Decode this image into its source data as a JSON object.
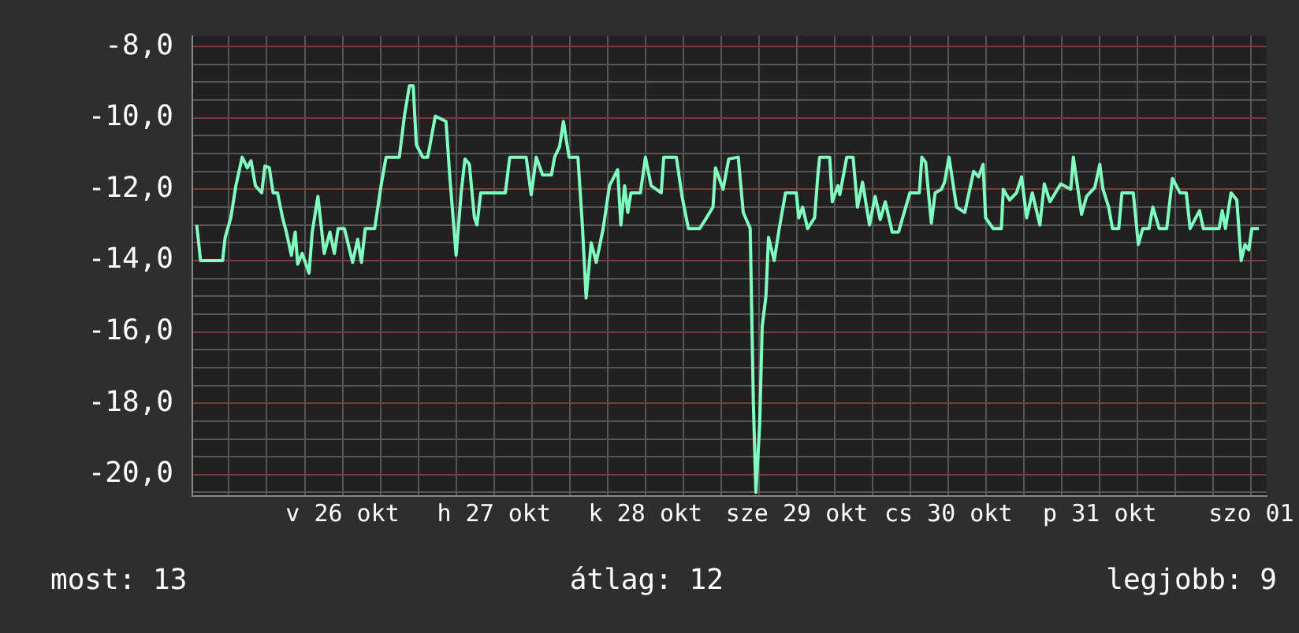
{
  "chart_data": {
    "type": "line",
    "x": [
      "--10-25T12:54",
      "--10-25T13:30",
      "--10-25T17:00",
      "--10-25T17:24",
      "--10-25T18:18",
      "--10-25T19:06",
      "--10-25T20:06",
      "--10-25T20:54",
      "--10-25T21:30",
      "--10-25T22:12",
      "--10-25T23:12",
      "--10-25T23:42",
      "--10-26T00:24",
      "--10-26T01:00",
      "--10-26T01:42",
      "--10-26T02:30",
      "--10-26T03:06",
      "--10-26T03:54",
      "--10-26T04:30",
      "--10-26T04:54",
      "--10-26T05:36",
      "--10-26T06:42",
      "--10-26T07:12",
      "--10-26T08:06",
      "--10-26T09:06",
      "--10-26T10:00",
      "--10-26T10:42",
      "--10-26T11:18",
      "--10-26T12:18",
      "--10-26T13:36",
      "--10-26T14:24",
      "--10-26T15:00",
      "--10-26T15:36",
      "--10-26T17:06",
      "--10-26T18:06",
      "--10-26T18:54",
      "--10-26T21:00",
      "--10-26T21:48",
      "--10-26T22:36",
      "--10-26T23:12",
      "--10-26T23:42",
      "--10-27T00:42",
      "--10-27T01:30",
      "--10-27T02:42",
      "--10-27T04:24",
      "--10-27T05:00",
      "--10-27T06:00",
      "--10-27T06:48",
      "--10-27T07:24",
      "--10-27T08:06",
      "--10-27T08:54",
      "--10-27T09:18",
      "--10-27T09:54",
      "--10-27T13:48",
      "--10-27T14:30",
      "--10-27T17:06",
      "--10-27T17:54",
      "--10-27T18:42",
      "--10-27T19:42",
      "--10-27T21:06",
      "--10-27T21:36",
      "--10-27T22:24",
      "--10-27T23:00",
      "--10-27T23:54",
      "--10-28T01:18",
      "--10-28T02:00",
      "--10-28T02:36",
      "--10-28T03:24",
      "--10-28T04:12",
      "--10-28T05:18",
      "--10-28T06:18",
      "--10-28T07:36",
      "--10-28T08:06",
      "--10-28T08:42",
      "--10-28T09:12",
      "--10-28T09:42",
      "--10-28T11:12",
      "--10-28T12:00",
      "--10-28T12:54",
      "--10-28T14:30",
      "--10-28T14:54",
      "--10-28T16:54",
      "--10-28T17:48",
      "--10-28T18:48",
      "--10-28T20:36",
      "--10-28T21:30",
      "--10-28T22:42",
      "--10-28T23:06",
      "--10-29T00:18",
      "--10-29T01:12",
      "--10-29T02:42",
      "--10-29T03:30",
      "--10-29T04:36",
      "--10-29T05:06",
      "--10-29T05:30",
      "--10-29T06:06",
      "--10-29T06:30",
      "--10-29T07:06",
      "--10-29T07:30",
      "--10-29T08:24",
      "--10-29T09:12",
      "--10-29T10:12",
      "--10-29T11:54",
      "--10-29T12:18",
      "--10-29T12:54",
      "--10-29T13:42",
      "--10-29T14:48",
      "--10-29T15:18",
      "--10-29T15:36",
      "--10-29T17:12",
      "--10-29T17:36",
      "--10-29T18:30",
      "--10-29T18:48",
      "--10-29T19:54",
      "--10-29T20:54",
      "--10-29T21:36",
      "--10-29T22:24",
      "--10-29T23:30",
      "--10-30T00:24",
      "--10-30T01:12",
      "--10-30T02:00",
      "--10-30T03:06",
      "--10-30T04:06",
      "--10-30T05:54",
      "--10-30T07:24",
      "--10-30T07:48",
      "--10-30T08:24",
      "--10-30T09:18",
      "--10-30T09:54",
      "--10-30T10:54",
      "--10-30T11:24",
      "--10-30T12:06",
      "--10-30T13:18",
      "--10-30T14:36",
      "--10-30T16:00",
      "--10-30T16:48",
      "--10-30T17:30",
      "--10-30T17:54",
      "--10-30T19:06",
      "--10-30T20:24",
      "--10-30T20:42",
      "--10-30T21:42",
      "--10-30T22:48",
      "--10-30T23:36",
      "--10-31T00:24",
      "--10-31T01:18",
      "--10-31T02:30",
      "--10-31T03:12",
      "--10-31T04:06",
      "--10-31T05:48",
      "--10-31T07:24",
      "--10-31T07:48",
      "--10-31T09:06",
      "--10-31T09:54",
      "--10-31T11:12",
      "--10-31T12:00",
      "--10-31T12:30",
      "--10-31T13:24",
      "--10-31T14:00",
      "--10-31T15:00",
      "--10-31T15:30",
      "--10-31T17:18",
      "--10-31T18:06",
      "--10-31T18:48",
      "--10-31T19:48",
      "--10-31T20:24",
      "--10-31T21:24",
      "--10-31T22:36",
      "--10-31T23:30",
      "--11-01T00:42",
      "--11-01T01:42",
      "--11-01T02:18",
      "--11-01T03:48",
      "--11-01T04:24",
      "--11-01T06:54",
      "--11-01T07:24",
      "--11-01T07:54",
      "--11-01T08:48",
      "--11-01T09:42",
      "--11-01T10:24",
      "--11-01T11:00",
      "--11-01T11:36",
      "--11-01T12:06",
      "--11-01T13:12"
    ],
    "series": [
      {
        "color": "#80ffc0",
        "values": [
          -13.0,
          -14.0,
          -14.0,
          -13.35,
          -12.8,
          -11.9,
          -11.1,
          -11.4,
          -11.2,
          -11.9,
          -12.1,
          -11.35,
          -11.4,
          -12.1,
          -12.1,
          -12.8,
          -13.2,
          -13.85,
          -13.2,
          -14.1,
          -13.8,
          -14.35,
          -13.2,
          -12.2,
          -13.8,
          -13.2,
          -13.8,
          -13.1,
          -13.1,
          -14.05,
          -13.4,
          -14.05,
          -13.1,
          -13.1,
          -11.9,
          -11.1,
          -11.1,
          -9.95,
          -9.1,
          -9.1,
          -10.75,
          -11.1,
          -11.1,
          -9.95,
          -10.1,
          -11.65,
          -13.85,
          -12.1,
          -11.15,
          -11.3,
          -12.8,
          -13.0,
          -12.1,
          -12.1,
          -11.1,
          -11.1,
          -12.15,
          -11.1,
          -11.6,
          -11.6,
          -11.1,
          -10.8,
          -10.1,
          -11.1,
          -11.1,
          -13.0,
          -15.05,
          -13.5,
          -14.05,
          -13.1,
          -11.9,
          -11.45,
          -13.0,
          -11.9,
          -12.65,
          -12.1,
          -12.1,
          -11.1,
          -11.9,
          -12.1,
          -11.1,
          -11.1,
          -12.2,
          -13.1,
          -13.1,
          -12.85,
          -12.5,
          -11.4,
          -12.0,
          -11.15,
          -11.1,
          -12.65,
          -13.1,
          -18.0,
          -20.5,
          -18.6,
          -15.85,
          -14.98,
          -13.35,
          -14.0,
          -13.1,
          -12.1,
          -12.1,
          -12.8,
          -12.5,
          -13.1,
          -12.8,
          -11.65,
          -11.1,
          -11.1,
          -12.35,
          -11.9,
          -12.15,
          -11.1,
          -11.1,
          -12.5,
          -11.8,
          -13.0,
          -12.2,
          -12.85,
          -12.35,
          -13.2,
          -13.2,
          -12.1,
          -12.1,
          -11.1,
          -11.25,
          -12.95,
          -12.1,
          -12.0,
          -11.8,
          -11.1,
          -12.5,
          -12.65,
          -11.5,
          -11.65,
          -11.3,
          -12.8,
          -13.1,
          -13.1,
          -12.0,
          -12.3,
          -12.1,
          -11.65,
          -12.8,
          -12.1,
          -13.0,
          -11.85,
          -12.35,
          -11.85,
          -12.0,
          -11.1,
          -12.7,
          -12.2,
          -11.95,
          -11.3,
          -12.0,
          -12.5,
          -13.1,
          -13.1,
          -12.1,
          -12.1,
          -13.55,
          -13.1,
          -13.1,
          -12.5,
          -13.1,
          -13.1,
          -11.7,
          -12.1,
          -12.1,
          -13.1,
          -12.6,
          -13.1,
          -13.1,
          -12.6,
          -13.1,
          -12.1,
          -12.3,
          -14.0,
          -13.55,
          -13.7,
          -13.1,
          -13.1
        ]
      }
    ],
    "xlim": [
      "--10-25T12:12",
      "--11-01T14:24"
    ],
    "xticks": [
      {
        "value": "--10-25T18:00",
        "label": null
      },
      {
        "value": "--10-26T00:00",
        "label": null
      },
      {
        "value": "--10-26T06:00",
        "label": null
      },
      {
        "value": "--10-26T12:00",
        "label": "v 26 okt"
      },
      {
        "value": "--10-26T18:00",
        "label": null
      },
      {
        "value": "--10-27T00:00",
        "label": null
      },
      {
        "value": "--10-27T06:00",
        "label": null
      },
      {
        "value": "--10-27T12:00",
        "label": "h 27 okt"
      },
      {
        "value": "--10-27T18:00",
        "label": null
      },
      {
        "value": "--10-28T00:00",
        "label": null
      },
      {
        "value": "--10-28T06:00",
        "label": null
      },
      {
        "value": "--10-28T12:00",
        "label": "k 28 okt"
      },
      {
        "value": "--10-28T18:00",
        "label": null
      },
      {
        "value": "--10-29T00:00",
        "label": null
      },
      {
        "value": "--10-29T06:00",
        "label": null
      },
      {
        "value": "--10-29T12:00",
        "label": "sze 29 okt"
      },
      {
        "value": "--10-29T18:00",
        "label": null
      },
      {
        "value": "--10-30T00:00",
        "label": null
      },
      {
        "value": "--10-30T06:00",
        "label": null
      },
      {
        "value": "--10-30T12:00",
        "label": "cs 30 okt"
      },
      {
        "value": "--10-30T18:00",
        "label": null
      },
      {
        "value": "--10-31T00:00",
        "label": null
      },
      {
        "value": "--10-31T06:00",
        "label": null
      },
      {
        "value": "--10-31T12:00",
        "label": "p 31 okt"
      },
      {
        "value": "--10-31T18:00",
        "label": null
      },
      {
        "value": "--11-01T00:00",
        "label": null
      },
      {
        "value": "--11-01T06:00",
        "label": null
      },
      {
        "value": "--11-01T12:00",
        "label": "szo 01"
      }
    ],
    "ylim": [
      -20.6,
      -7.7
    ],
    "yticks": [
      {
        "value": -8,
        "label": "-8,0"
      },
      {
        "value": -8.5,
        "label": null
      },
      {
        "value": -9,
        "label": null
      },
      {
        "value": -9.5,
        "label": null
      },
      {
        "value": -10,
        "label": "-10,0"
      },
      {
        "value": -10.5,
        "label": null
      },
      {
        "value": -11,
        "label": null
      },
      {
        "value": -11.5,
        "label": null
      },
      {
        "value": -12,
        "label": "-12,0"
      },
      {
        "value": -12.5,
        "label": null
      },
      {
        "value": -13,
        "label": null
      },
      {
        "value": -13.5,
        "label": null
      },
      {
        "value": -14,
        "label": "-14,0"
      },
      {
        "value": -14.5,
        "label": null
      },
      {
        "value": -15,
        "label": null
      },
      {
        "value": -15.5,
        "label": null
      },
      {
        "value": -16,
        "label": "-16,0"
      },
      {
        "value": -16.5,
        "label": null
      },
      {
        "value": -17,
        "label": null
      },
      {
        "value": -17.5,
        "label": null
      },
      {
        "value": -18,
        "label": "-18,0"
      },
      {
        "value": -18.5,
        "label": null
      },
      {
        "value": -19,
        "label": null
      },
      {
        "value": -19.5,
        "label": null
      },
      {
        "value": -20,
        "label": "-20,0"
      },
      {
        "value": -20.5,
        "label": null
      }
    ],
    "grid": true,
    "legend": false,
    "annotations": [
      "most: 13",
      "átlag: 12",
      "legjobb: 9"
    ]
  }
}
